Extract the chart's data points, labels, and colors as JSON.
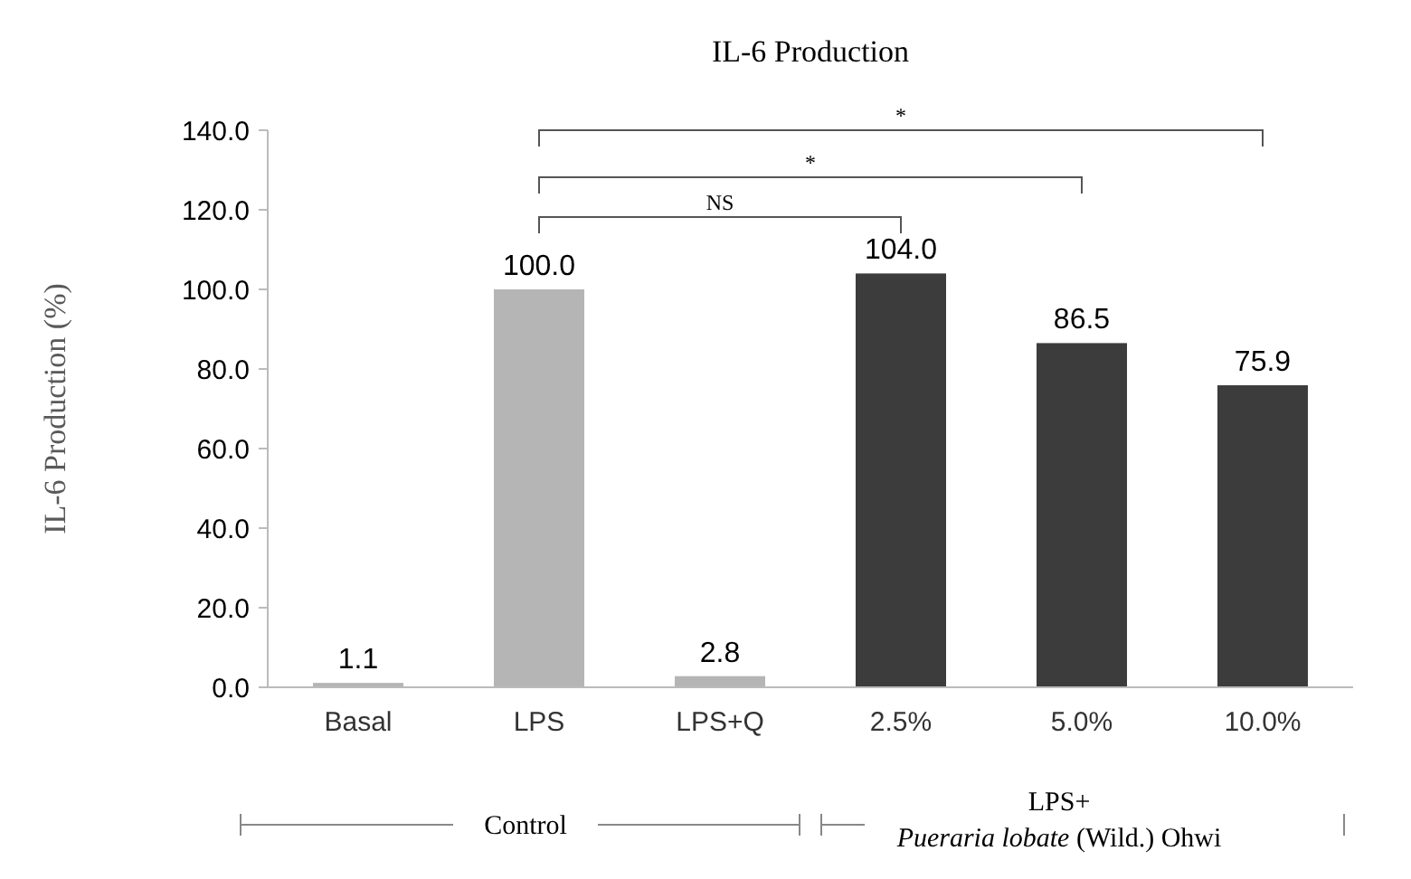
{
  "chart_data": {
    "type": "bar",
    "title": "IL-6 Production",
    "ylabel": "IL-6 Production (%)",
    "categories": [
      "Basal",
      "LPS",
      "LPS+Q",
      "2.5%",
      "5.0%",
      "10.0%"
    ],
    "values": [
      1.1,
      100,
      2.8,
      104,
      86.5,
      75.9
    ],
    "colors": [
      "#b5b5b5",
      "#b5b5b5",
      "#b5b5b5",
      "#3c3c3c",
      "#3c3c3c",
      "#3c3c3c"
    ],
    "ylim": [
      0,
      140
    ],
    "yticks": [
      {
        "value": 0,
        "label": "0.0"
      },
      {
        "value": 20,
        "label": "20.0"
      },
      {
        "value": 40,
        "label": "40.0"
      },
      {
        "value": 60,
        "label": "60.0"
      },
      {
        "value": 80,
        "label": "80.0"
      },
      {
        "value": 100,
        "label": "100.0"
      },
      {
        "value": 120,
        "label": "120.0"
      },
      {
        "value": 140,
        "label": "140.0"
      }
    ],
    "value_labels": [
      "1.1",
      "100.0",
      "2.8",
      "104.0",
      "86.5",
      "75.9"
    ],
    "grid": false,
    "annotations": [
      "NS",
      "*",
      "*",
      "Control",
      "LPS+",
      "Pueraria lobate (Wild.) Ohwi"
    ]
  }
}
